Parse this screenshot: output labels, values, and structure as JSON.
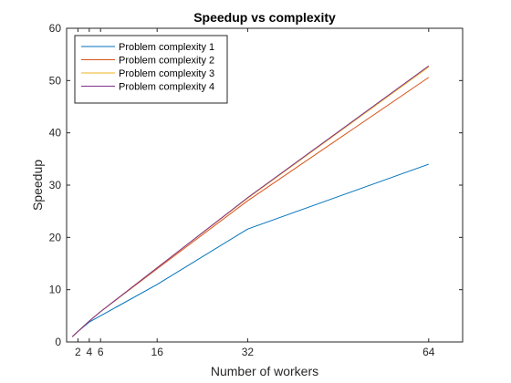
{
  "chart_data": {
    "type": "line",
    "title": "Speedup vs complexity",
    "xlabel": "Number of workers",
    "ylabel": "Speedup",
    "xlim": [
      0,
      70
    ],
    "ylim": [
      0,
      60
    ],
    "xticks": [
      2,
      4,
      6,
      16,
      32,
      64
    ],
    "yticks": [
      0,
      10,
      20,
      30,
      40,
      50,
      60
    ],
    "grid": false,
    "legend_position": "top-left",
    "x": [
      1,
      2,
      4,
      6,
      16,
      32,
      64
    ],
    "series": [
      {
        "name": "Problem complexity 1",
        "color": "#0072BD",
        "values": [
          1,
          2.0,
          3.8,
          5.0,
          11.0,
          21.6,
          34.0
        ]
      },
      {
        "name": "Problem complexity 2",
        "color": "#D95319",
        "values": [
          1,
          2.0,
          4.0,
          5.8,
          14.0,
          27.0,
          50.6
        ]
      },
      {
        "name": "Problem complexity 3",
        "color": "#EDB120",
        "values": [
          1,
          2.0,
          4.0,
          5.8,
          14.2,
          27.5,
          52.6
        ]
      },
      {
        "name": "Problem complexity 4",
        "color": "#7E2F8E",
        "values": [
          1,
          2.0,
          4.0,
          5.8,
          14.2,
          27.6,
          52.8
        ]
      }
    ]
  }
}
